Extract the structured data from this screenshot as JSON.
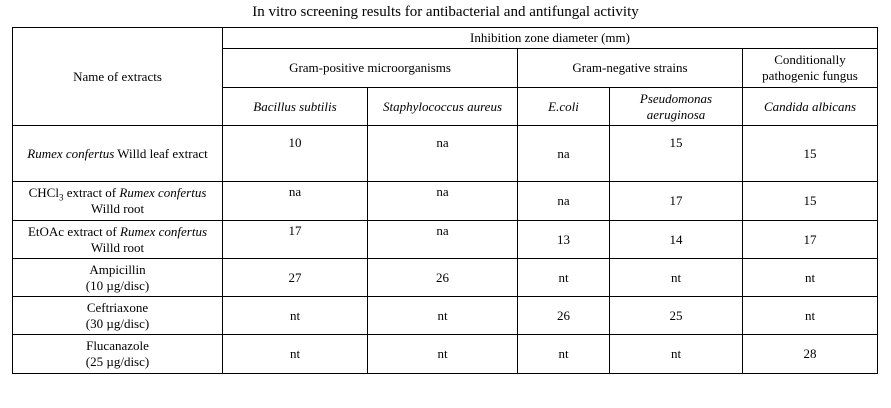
{
  "caption": "In vitro screening results for antibacterial and antifungal activity",
  "header": {
    "name_col": "Name of extracts",
    "inhibition": "Inhibition zone diameter (mm)",
    "groups": [
      "Gram-positive microorganisms",
      "Gram-negative strains",
      "Conditionally pathogenic fungus"
    ],
    "strains": [
      "Bacillus subtilis",
      "Staphylococcus aureus",
      "E.coli",
      "Pseudomonas aeruginosa",
      "Candida albicans"
    ]
  },
  "rows": [
    {
      "name_parts": {
        "italic": "Rumex confertus",
        "rest": " Willd leaf extract"
      },
      "values": [
        "10",
        "na",
        "na",
        "15",
        "15"
      ]
    },
    {
      "name_parts": {
        "pre": "CHCl",
        "sub": "3",
        "mid": " extract of ",
        "italic": "Rumex confertus",
        "rest": " Willd root"
      },
      "values": [
        "na",
        "na",
        "na",
        "17",
        "15"
      ]
    },
    {
      "name_parts": {
        "pre": "EtOAc extract of ",
        "italic": "Rumex confertus",
        "rest": " Willd root"
      },
      "values": [
        "17",
        "na",
        "13",
        "14",
        "17"
      ]
    },
    {
      "name_lines": [
        "Ampicillin",
        "(10 µg/disc)"
      ],
      "values": [
        "27",
        "26",
        "nt",
        "nt",
        "nt"
      ]
    },
    {
      "name_lines": [
        "Ceftriaxone",
        "(30 µg/disc)"
      ],
      "values": [
        "nt",
        "nt",
        "26",
        "25",
        "nt"
      ]
    },
    {
      "name_lines": [
        "Flucanazole",
        "(25 µg/disc)"
      ],
      "values": [
        "nt",
        "nt",
        "nt",
        "nt",
        "28"
      ]
    }
  ]
}
